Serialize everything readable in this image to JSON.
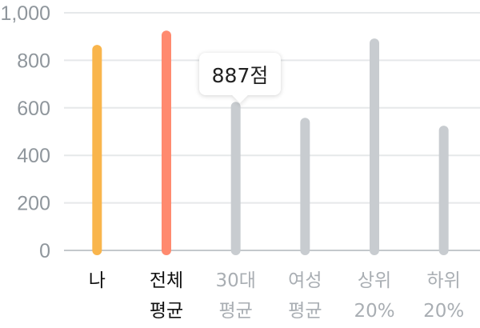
{
  "chart_data": {
    "type": "bar",
    "categories": [
      {
        "lines": [
          "나"
        ],
        "highlight": true
      },
      {
        "lines": [
          "전체",
          "평균"
        ],
        "highlight": true
      },
      {
        "lines": [
          "30대",
          "평균"
        ],
        "highlight": false
      },
      {
        "lines": [
          "여성",
          "평균"
        ],
        "highlight": false
      },
      {
        "lines": [
          "상위",
          "20%"
        ],
        "highlight": false
      },
      {
        "lines": [
          "하위",
          "20%"
        ],
        "highlight": false
      }
    ],
    "values": [
      865,
      925,
      625,
      558,
      892,
      525
    ],
    "bar_colors": [
      "#f9b54c",
      "#ff8a6f",
      "#c8ccd0",
      "#c8ccd0",
      "#c8ccd0",
      "#c8ccd0"
    ],
    "ylim": [
      0,
      1000
    ],
    "yticks": [
      "0",
      "200",
      "400",
      "600",
      "800",
      "1,000"
    ],
    "grid": true,
    "tooltip": {
      "text": "887점"
    },
    "colors": {
      "grid": "#e6e8ea",
      "axis": "#c4c8cc",
      "tick_text": "#8f969c",
      "label_highlight": "#111111",
      "label_muted": "#a9aeb3"
    }
  }
}
